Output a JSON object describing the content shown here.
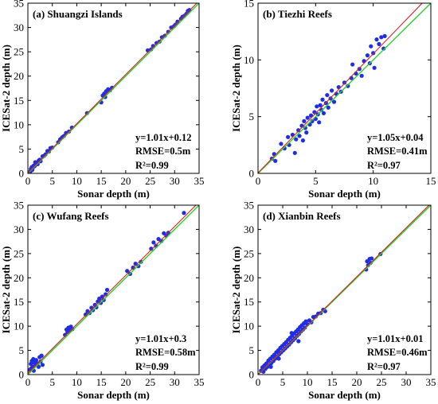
{
  "colors": {
    "point": "#1f2de6",
    "one_to_one_line": "#2bd12b",
    "fit_line": "#d62020",
    "axis": "#000000"
  },
  "chart_data": [
    {
      "type": "scatter",
      "title": "(a) Shuangzi Islands",
      "xlabel": "Sonar depth (m)",
      "ylabel": "ICESat-2 depth (m)",
      "xlim": [
        0,
        35
      ],
      "ylim": [
        0,
        35
      ],
      "xticks": [
        0,
        5,
        10,
        15,
        20,
        25,
        30,
        35
      ],
      "yticks": [
        0,
        5,
        10,
        15,
        20,
        25,
        30,
        35
      ],
      "stats": {
        "equation": "y=1.01x+0.12",
        "rmse": "RMSE=0.5m",
        "r2": "R²=0.99"
      },
      "fit": {
        "slope": 1.01,
        "intercept": 0.12
      },
      "points": [
        [
          0.6,
          0.9
        ],
        [
          0.8,
          1.3
        ],
        [
          1.0,
          1.1
        ],
        [
          1.2,
          1.6
        ],
        [
          1.4,
          1.5
        ],
        [
          1.6,
          1.9
        ],
        [
          1.8,
          2.2
        ],
        [
          2.0,
          1.9
        ],
        [
          2.2,
          2.6
        ],
        [
          0.5,
          0.4
        ],
        [
          0.9,
          0.7
        ],
        [
          1.5,
          2.3
        ],
        [
          2.4,
          2.8
        ],
        [
          2.6,
          2.5
        ],
        [
          3.0,
          3.5
        ],
        [
          3.3,
          3.6
        ],
        [
          3.6,
          3.9
        ],
        [
          4.0,
          4.6
        ],
        [
          4.3,
          4.5
        ],
        [
          4.6,
          5.2
        ],
        [
          5.0,
          5.3
        ],
        [
          6.2,
          6.4
        ],
        [
          6.6,
          7.0
        ],
        [
          7.0,
          7.4
        ],
        [
          7.4,
          7.7
        ],
        [
          7.8,
          8.3
        ],
        [
          8.4,
          8.6
        ],
        [
          9.0,
          9.4
        ],
        [
          12.1,
          12.4
        ],
        [
          15.0,
          14.6
        ],
        [
          15.3,
          16.0
        ],
        [
          15.6,
          16.4
        ],
        [
          15.8,
          15.7
        ],
        [
          16.0,
          16.9
        ],
        [
          16.4,
          17.3
        ],
        [
          16.8,
          17.1
        ],
        [
          17.2,
          17.6
        ],
        [
          24.5,
          25.3
        ],
        [
          25.2,
          25.5
        ],
        [
          25.6,
          26.2
        ],
        [
          26.3,
          26.8
        ],
        [
          26.9,
          27.1
        ],
        [
          27.4,
          28.0
        ],
        [
          28.0,
          28.3
        ],
        [
          28.7,
          29.1
        ],
        [
          29.3,
          30.0
        ],
        [
          29.9,
          30.3
        ],
        [
          30.6,
          31.2
        ],
        [
          31.3,
          31.8
        ],
        [
          32.0,
          32.4
        ],
        [
          32.4,
          32.8
        ],
        [
          32.7,
          33.4
        ],
        [
          33.0,
          33.6
        ],
        [
          31.6,
          32.2
        ],
        [
          30.2,
          30.6
        ]
      ]
    },
    {
      "type": "scatter",
      "title": "(b) Tiezhi Reefs",
      "xlabel": "Sonar depth (m)",
      "ylabel": "ICESat-2 depth (m)",
      "xlim": [
        0,
        15
      ],
      "ylim": [
        0,
        15
      ],
      "xticks": [
        0,
        5,
        10,
        15
      ],
      "yticks": [
        0,
        5,
        10,
        15
      ],
      "stats": {
        "equation": "y=1.05x+0.04",
        "rmse": "RMSE=0.41m",
        "r2": "R²=0.97"
      },
      "fit": {
        "slope": 1.05,
        "intercept": 0.04
      },
      "points": [
        [
          1.2,
          1.3
        ],
        [
          1.4,
          1.7
        ],
        [
          1.5,
          1.1
        ],
        [
          2.0,
          2.6
        ],
        [
          2.3,
          2.2
        ],
        [
          2.6,
          3.2
        ],
        [
          2.7,
          2.5
        ],
        [
          3.0,
          3.4
        ],
        [
          3.2,
          1.8
        ],
        [
          3.3,
          3.0
        ],
        [
          3.5,
          3.8
        ],
        [
          3.6,
          3.3
        ],
        [
          3.8,
          4.2
        ],
        [
          3.9,
          2.9
        ],
        [
          4.0,
          4.6
        ],
        [
          4.1,
          4.0
        ],
        [
          4.2,
          3.6
        ],
        [
          4.3,
          4.9
        ],
        [
          4.5,
          4.3
        ],
        [
          4.6,
          5.1
        ],
        [
          4.7,
          4.6
        ],
        [
          4.9,
          5.4
        ],
        [
          5.0,
          4.8
        ],
        [
          5.1,
          5.9
        ],
        [
          5.2,
          5.2
        ],
        [
          5.3,
          4.5
        ],
        [
          5.4,
          6.0
        ],
        [
          5.5,
          5.6
        ],
        [
          5.6,
          6.5
        ],
        [
          5.7,
          5.3
        ],
        [
          5.9,
          6.2
        ],
        [
          6.0,
          6.9
        ],
        [
          6.1,
          5.8
        ],
        [
          6.3,
          6.6
        ],
        [
          6.4,
          7.3
        ],
        [
          6.6,
          6.3
        ],
        [
          6.8,
          7.0
        ],
        [
          7.0,
          7.6
        ],
        [
          7.2,
          7.2
        ],
        [
          7.5,
          8.0
        ],
        [
          7.8,
          7.7
        ],
        [
          8.1,
          8.4
        ],
        [
          8.2,
          9.6
        ],
        [
          8.5,
          8.8
        ],
        [
          8.8,
          9.2
        ],
        [
          9.0,
          8.6
        ],
        [
          9.2,
          9.9
        ],
        [
          9.5,
          10.4
        ],
        [
          9.7,
          9.7
        ],
        [
          9.8,
          11.2
        ],
        [
          10.0,
          10.6
        ],
        [
          10.1,
          9.3
        ],
        [
          10.3,
          11.8
        ],
        [
          10.5,
          11.4
        ],
        [
          10.7,
          12.0
        ],
        [
          10.9,
          11.0
        ],
        [
          11.0,
          12.1
        ]
      ]
    },
    {
      "type": "scatter",
      "title": "(c) Wufang Reefs",
      "xlabel": "Sonar depth (m)",
      "ylabel": "ICESat-2 depth (m)",
      "xlim": [
        0,
        35
      ],
      "ylim": [
        0,
        35
      ],
      "xticks": [
        0,
        5,
        10,
        15,
        20,
        25,
        30,
        35
      ],
      "yticks": [
        0,
        5,
        10,
        15,
        20,
        25,
        30,
        35
      ],
      "stats": {
        "equation": "y=1.01x+0.3",
        "rmse": "RMSE=0.58m",
        "r2": "R²=0.99"
      },
      "fit": {
        "slope": 1.01,
        "intercept": 0.3
      },
      "points": [
        [
          0.4,
          1.0
        ],
        [
          0.6,
          2.2
        ],
        [
          0.8,
          2.8
        ],
        [
          1.0,
          1.6
        ],
        [
          1.2,
          0.8
        ],
        [
          1.3,
          2.5
        ],
        [
          1.5,
          1.9
        ],
        [
          1.7,
          3.0
        ],
        [
          2.0,
          2.3
        ],
        [
          2.2,
          1.6
        ],
        [
          2.4,
          3.6
        ],
        [
          2.6,
          2.7
        ],
        [
          2.8,
          3.9
        ],
        [
          3.0,
          2.0
        ],
        [
          0.7,
          1.3
        ],
        [
          1.1,
          3.2
        ],
        [
          7.6,
          8.2
        ],
        [
          7.9,
          9.3
        ],
        [
          8.1,
          8.8
        ],
        [
          8.3,
          9.7
        ],
        [
          8.6,
          9.1
        ],
        [
          8.8,
          9.9
        ],
        [
          9.1,
          9.4
        ],
        [
          11.8,
          12.4
        ],
        [
          12.2,
          13.1
        ],
        [
          12.6,
          12.7
        ],
        [
          13.0,
          13.8
        ],
        [
          13.3,
          13.3
        ],
        [
          13.7,
          14.4
        ],
        [
          14.0,
          13.9
        ],
        [
          14.3,
          15.1
        ],
        [
          14.6,
          15.7
        ],
        [
          14.9,
          14.8
        ],
        [
          15.2,
          16.1
        ],
        [
          15.5,
          15.4
        ],
        [
          15.9,
          16.6
        ],
        [
          16.2,
          17.5
        ],
        [
          20.3,
          21.4
        ],
        [
          20.9,
          20.8
        ],
        [
          21.5,
          22.1
        ],
        [
          22.0,
          22.9
        ],
        [
          22.6,
          22.4
        ],
        [
          23.1,
          23.3
        ],
        [
          25.2,
          26.0
        ],
        [
          25.7,
          27.3
        ],
        [
          26.2,
          26.6
        ],
        [
          26.7,
          28.0
        ],
        [
          27.3,
          27.6
        ],
        [
          27.8,
          29.2
        ],
        [
          28.3,
          28.7
        ],
        [
          28.7,
          29.3
        ],
        [
          31.9,
          33.4
        ]
      ]
    },
    {
      "type": "scatter",
      "title": "(d) Xianbin Reefs",
      "xlabel": "Sonar depth (m)",
      "ylabel": "ICESat-2 depth (m)",
      "xlim": [
        0,
        35
      ],
      "ylim": [
        0,
        35
      ],
      "xticks": [
        0,
        5,
        10,
        15,
        20,
        25,
        30,
        35
      ],
      "yticks": [
        0,
        5,
        10,
        15,
        20,
        25,
        30,
        35
      ],
      "stats": {
        "equation": "y=1.01x+0.01",
        "rmse": "RMSE=0.46m",
        "r2": "R²=0.97"
      },
      "fit": {
        "slope": 1.01,
        "intercept": 0.01
      },
      "points": [
        [
          0.6,
          0.8
        ],
        [
          0.9,
          1.5
        ],
        [
          1.1,
          0.6
        ],
        [
          1.3,
          1.9
        ],
        [
          1.5,
          1.2
        ],
        [
          1.7,
          2.3
        ],
        [
          1.9,
          1.6
        ],
        [
          2.1,
          2.9
        ],
        [
          2.3,
          2.0
        ],
        [
          2.5,
          3.3
        ],
        [
          2.7,
          2.4
        ],
        [
          2.9,
          3.7
        ],
        [
          3.1,
          2.8
        ],
        [
          3.3,
          4.1
        ],
        [
          3.5,
          3.3
        ],
        [
          3.7,
          4.6
        ],
        [
          3.9,
          3.7
        ],
        [
          4.1,
          5.0
        ],
        [
          4.3,
          4.2
        ],
        [
          4.5,
          5.5
        ],
        [
          4.7,
          4.6
        ],
        [
          4.9,
          5.9
        ],
        [
          5.1,
          5.0
        ],
        [
          5.3,
          6.3
        ],
        [
          5.5,
          5.4
        ],
        [
          5.7,
          6.7
        ],
        [
          5.9,
          5.8
        ],
        [
          6.1,
          7.2
        ],
        [
          6.3,
          6.2
        ],
        [
          6.5,
          7.6
        ],
        [
          6.7,
          6.7
        ],
        [
          6.9,
          8.0
        ],
        [
          7.1,
          7.1
        ],
        [
          7.3,
          8.5
        ],
        [
          7.5,
          7.5
        ],
        [
          7.7,
          8.9
        ],
        [
          7.9,
          8.0
        ],
        [
          8.1,
          9.3
        ],
        [
          8.3,
          8.4
        ],
        [
          8.5,
          9.8
        ],
        [
          8.7,
          8.9
        ],
        [
          8.9,
          10.2
        ],
        [
          9.1,
          9.3
        ],
        [
          9.3,
          10.6
        ],
        [
          9.5,
          9.7
        ],
        [
          9.7,
          11.0
        ],
        [
          10.0,
          10.4
        ],
        [
          10.4,
          11.2
        ],
        [
          10.8,
          10.8
        ],
        [
          11.2,
          11.9
        ],
        [
          11.7,
          12.0
        ],
        [
          12.2,
          12.6
        ],
        [
          12.7,
          12.7
        ],
        [
          13.2,
          13.4
        ],
        [
          13.6,
          13.1
        ],
        [
          8.2,
          6.9
        ],
        [
          6.8,
          8.6
        ],
        [
          4.2,
          3.3
        ],
        [
          2.6,
          1.6
        ],
        [
          21.9,
          21.7
        ],
        [
          22.1,
          23.4
        ],
        [
          22.3,
          22.6
        ],
        [
          22.6,
          23.9
        ],
        [
          22.8,
          23.1
        ],
        [
          23.0,
          24.0
        ],
        [
          24.8,
          24.9
        ]
      ]
    }
  ]
}
